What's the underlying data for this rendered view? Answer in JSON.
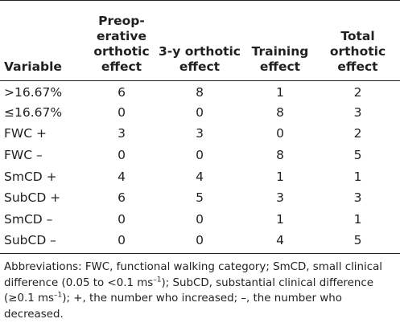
{
  "table": {
    "headers": [
      "Variable",
      "Preop-\nerative\northotic\neffect",
      "3-y orthotic\neffect",
      "Training\neffect",
      "Total\northotic\neffect"
    ],
    "rows": [
      [
        ">16.67%",
        "6",
        "8",
        "1",
        "2"
      ],
      [
        "≤16.67%",
        "0",
        "0",
        "8",
        "3"
      ],
      [
        "FWC +",
        "3",
        "3",
        "0",
        "2"
      ],
      [
        "FWC –",
        "0",
        "0",
        "8",
        "5"
      ],
      [
        "SmCD +",
        "4",
        "4",
        "1",
        "1"
      ],
      [
        "SubCD +",
        "6",
        "5",
        "3",
        "3"
      ],
      [
        "SmCD –",
        "0",
        "0",
        "1",
        "1"
      ],
      [
        "SubCD –",
        "0",
        "0",
        "4",
        "5"
      ]
    ]
  },
  "footnote": {
    "parts": [
      "Abbreviations: FWC, functional walking category; SmCD, small clinical difference (0.05 to <0.1 ms",
      "–1",
      "); SubCD, substantial clinical difference (≥0.1 ms",
      "–1",
      "); +, the number who increased; –, the number who decreased."
    ]
  }
}
